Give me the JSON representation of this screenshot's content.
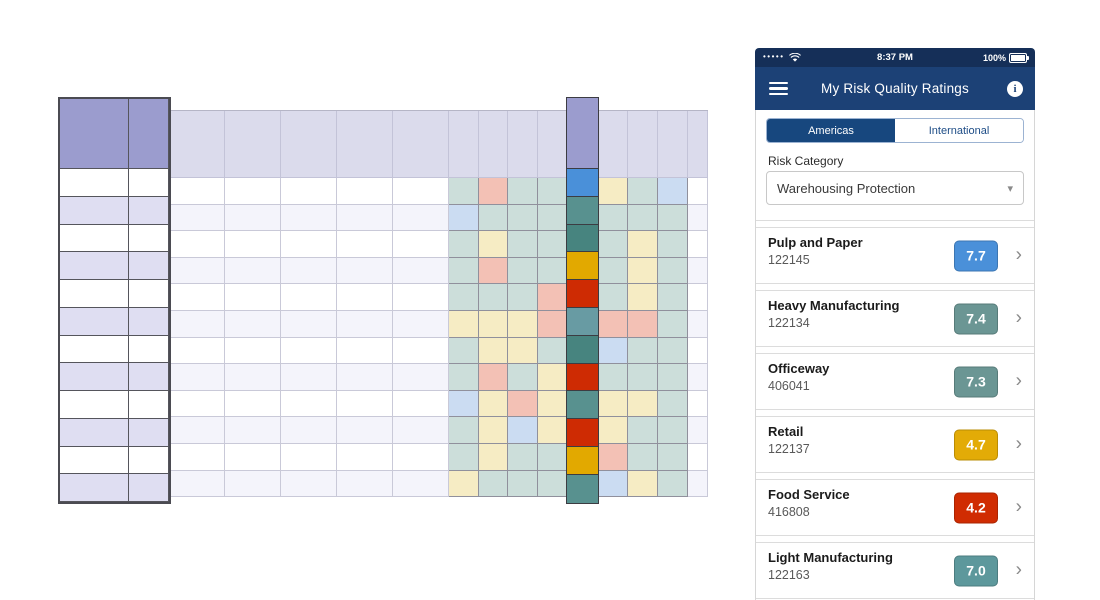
{
  "visualization": {
    "palette": {
      "t": "#ccdeda",
      "p": "#f3c1b5",
      "y": "#f6ecc4",
      "b": "#cbdcf2",
      "blue": "#4a90d9",
      "tealS": "#58918f",
      "tealD": "#47847f",
      "tealL": "#689ba3",
      "gold": "#e2a900",
      "red": "#ce2b03",
      "headerPurple": "#9b9cce",
      "headerLavender": "#dbdbec",
      "stripe": "#f4f4fb",
      "paneStripe": "#dfdef2"
    },
    "heatmap_rows": [
      [
        "t",
        "p",
        "t",
        "t",
        "y",
        "t",
        "b",
        ""
      ],
      [
        "b",
        "t",
        "t",
        "t",
        "t",
        "t",
        "t",
        ""
      ],
      [
        "t",
        "y",
        "t",
        "t",
        "t",
        "y",
        "t",
        ""
      ],
      [
        "t",
        "p",
        "t",
        "t",
        "t",
        "y",
        "t",
        ""
      ],
      [
        "t",
        "t",
        "t",
        "p",
        "t",
        "y",
        "t",
        ""
      ],
      [
        "y",
        "y",
        "y",
        "p",
        "p",
        "p",
        "t",
        ""
      ],
      [
        "t",
        "y",
        "y",
        "t",
        "b",
        "t",
        "t",
        ""
      ],
      [
        "t",
        "p",
        "t",
        "y",
        "t",
        "t",
        "t",
        ""
      ],
      [
        "b",
        "y",
        "p",
        "y",
        "y",
        "y",
        "t",
        ""
      ],
      [
        "t",
        "y",
        "b",
        "y",
        "y",
        "t",
        "t",
        ""
      ],
      [
        "t",
        "y",
        "t",
        "t",
        "p",
        "t",
        "t",
        ""
      ],
      [
        "y",
        "t",
        "t",
        "t",
        "b",
        "y",
        "t",
        ""
      ]
    ],
    "highlight_cells": [
      "blue",
      "tealS",
      "tealD",
      "gold",
      "red",
      "tealL",
      "tealD",
      "red",
      "tealS",
      "red",
      "gold",
      "tealS"
    ]
  },
  "phone": {
    "status_bar": {
      "carrier_dots": "•••••",
      "time": "8:37 PM",
      "battery": "100%"
    },
    "nav": {
      "title": "My Risk Quality Ratings"
    },
    "tabs": [
      {
        "label": "Americas",
        "active": true
      },
      {
        "label": "International",
        "active": false
      }
    ],
    "risk_category_label": "Risk Category",
    "risk_category_value": "Warehousing Protection",
    "dropdown_chevron": "▾",
    "ratings": [
      {
        "name": "Pulp and Paper",
        "id": "122145",
        "score": "7.7",
        "color": "#4a90d9"
      },
      {
        "name": "Heavy Manufacturing",
        "id": "122134",
        "score": "7.4",
        "color": "#6b9694"
      },
      {
        "name": "Officeway",
        "id": "406041",
        "score": "7.3",
        "color": "#6b9694"
      },
      {
        "name": "Retail",
        "id": "122137",
        "score": "4.7",
        "color": "#e3ab07"
      },
      {
        "name": "Food Service",
        "id": "416808",
        "score": "4.2",
        "color": "#d02c02"
      },
      {
        "name": "Light Manufacturing",
        "id": "122163",
        "score": "7.0",
        "color": "#5d989c"
      }
    ]
  }
}
